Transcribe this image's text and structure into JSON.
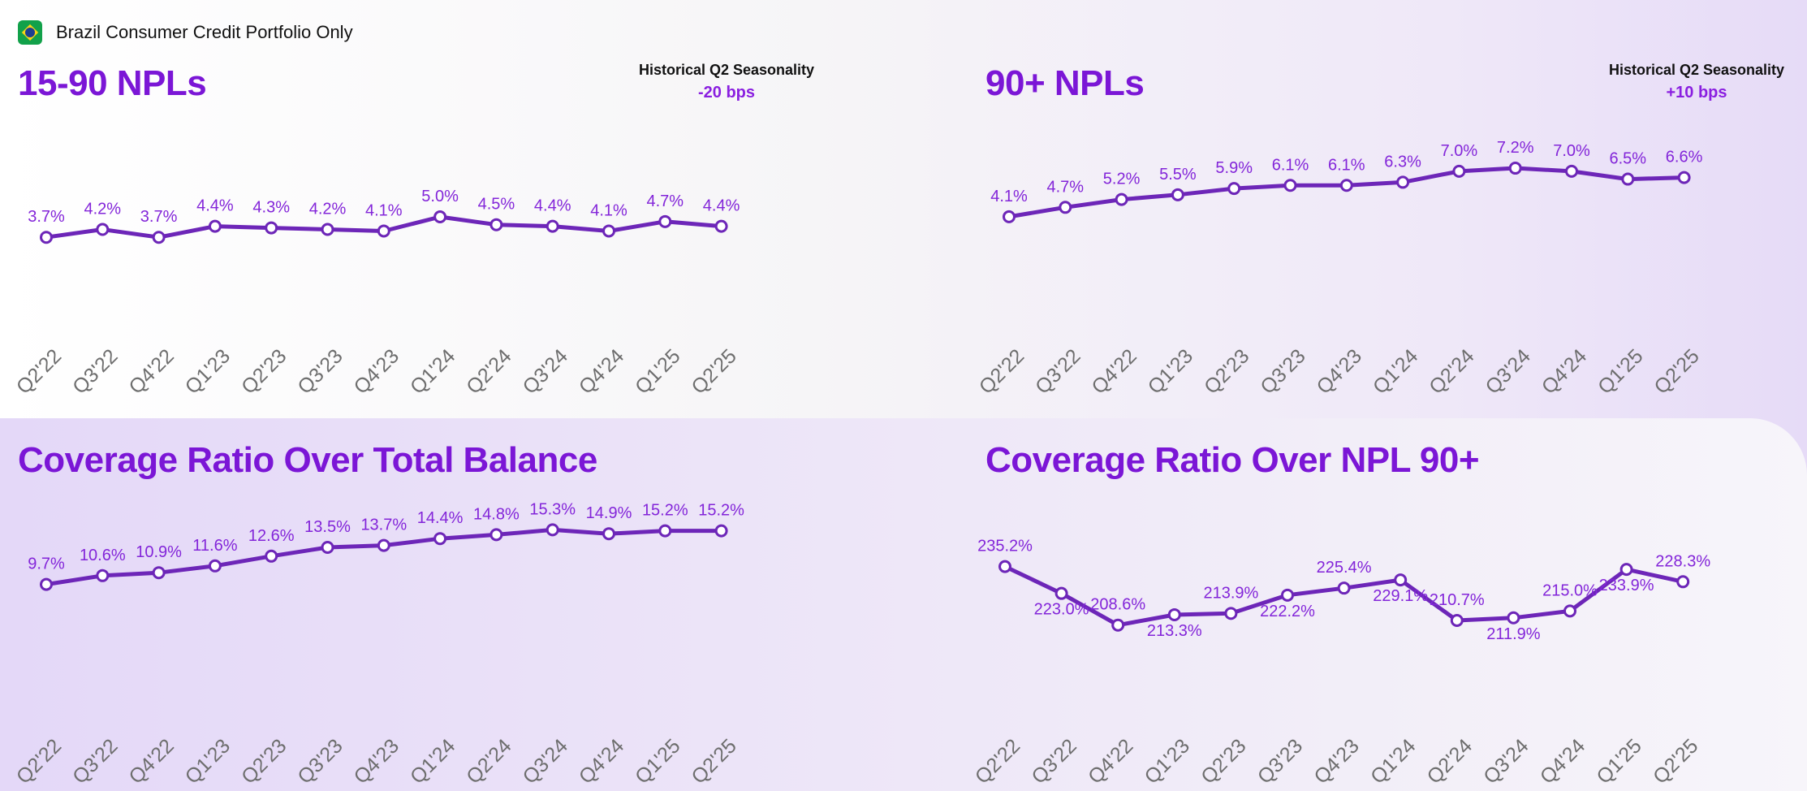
{
  "header": {
    "flag_icon": "brazil-flag-icon",
    "subtitle": "Brazil Consumer Credit Portfolio Only"
  },
  "colors": {
    "accent": "#7b16d6",
    "line": "#6d26b8",
    "label": "#8325d9"
  },
  "panels": {
    "npl_15_90": {
      "title": "15-90 NPLs",
      "seasonality_label": "Historical Q2 Seasonality",
      "seasonality_value": "-20 bps"
    },
    "npl_90": {
      "title": "90+ NPLs",
      "seasonality_label": "Historical Q2 Seasonality",
      "seasonality_value": "+10 bps"
    },
    "coverage_total": {
      "title": "Coverage Ratio Over Total Balance"
    },
    "coverage_npl90": {
      "title": "Coverage Ratio Over NPL 90+"
    }
  },
  "chart_data": [
    {
      "id": "npl_15_90",
      "type": "line",
      "title": "15-90 NPLs",
      "categories": [
        "Q2'22",
        "Q3'22",
        "Q4'22",
        "Q1'23",
        "Q2'23",
        "Q3'23",
        "Q4'23",
        "Q1'24",
        "Q2'24",
        "Q3'24",
        "Q4'24",
        "Q1'25",
        "Q2'25"
      ],
      "values": [
        3.7,
        4.2,
        3.7,
        4.4,
        4.3,
        4.2,
        4.1,
        5.0,
        4.5,
        4.4,
        4.1,
        4.7,
        4.4
      ],
      "labels": [
        "3.7%",
        "4.2%",
        "3.7%",
        "4.4%",
        "4.3%",
        "4.2%",
        "4.1%",
        "5.0%",
        "4.5%",
        "4.4%",
        "4.1%",
        "4.7%",
        "4.4%"
      ],
      "label_side": [
        "up",
        "up",
        "up",
        "up",
        "up",
        "up",
        "up",
        "up",
        "up",
        "up",
        "up",
        "up",
        "up"
      ],
      "ylim": [
        0,
        9
      ]
    },
    {
      "id": "npl_90",
      "type": "line",
      "title": "90+ NPLs",
      "categories": [
        "Q2'22",
        "Q3'22",
        "Q4'22",
        "Q1'23",
        "Q2'23",
        "Q3'23",
        "Q4'23",
        "Q1'24",
        "Q2'24",
        "Q3'24",
        "Q4'24",
        "Q1'25",
        "Q2'25"
      ],
      "values": [
        4.1,
        4.7,
        5.2,
        5.5,
        5.9,
        6.1,
        6.1,
        6.3,
        7.0,
        7.2,
        7.0,
        6.5,
        6.6
      ],
      "labels": [
        "4.1%",
        "4.7%",
        "5.2%",
        "5.5%",
        "5.9%",
        "6.1%",
        "6.1%",
        "6.3%",
        "7.0%",
        "7.2%",
        "7.0%",
        "6.5%",
        "6.6%"
      ],
      "label_side": [
        "up",
        "up",
        "up",
        "up",
        "up",
        "up",
        "up",
        "up",
        "up",
        "up",
        "up",
        "up",
        "up"
      ],
      "ylim": [
        0,
        9.5
      ]
    },
    {
      "id": "coverage_total",
      "type": "line",
      "title": "Coverage Ratio Over Total Balance",
      "categories": [
        "Q2'22",
        "Q3'22",
        "Q4'22",
        "Q1'23",
        "Q2'23",
        "Q3'23",
        "Q4'23",
        "Q1'24",
        "Q2'24",
        "Q3'24",
        "Q4'24",
        "Q1'25",
        "Q2'25"
      ],
      "values": [
        9.7,
        10.6,
        10.9,
        11.6,
        12.6,
        13.5,
        13.7,
        14.4,
        14.8,
        15.3,
        14.9,
        15.2,
        15.2
      ],
      "labels": [
        "9.7%",
        "10.6%",
        "10.9%",
        "11.6%",
        "12.6%",
        "13.5%",
        "13.7%",
        "14.4%",
        "14.8%",
        "15.3%",
        "14.9%",
        "15.2%",
        "15.2%"
      ],
      "label_side": [
        "up",
        "up",
        "up",
        "up",
        "up",
        "up",
        "up",
        "up",
        "up",
        "up",
        "up",
        "up",
        "up"
      ],
      "ylim": [
        0,
        34
      ]
    },
    {
      "id": "coverage_npl90",
      "type": "line",
      "title": "Coverage Ratio Over NPL 90+",
      "categories": [
        "Q2'22",
        "Q3'22",
        "Q4'22",
        "Q1'23",
        "Q2'23",
        "Q3'23",
        "Q4'23",
        "Q1'24",
        "Q2'24",
        "Q3'24",
        "Q4'24",
        "Q1'25",
        "Q2'25"
      ],
      "values": [
        235.2,
        223.0,
        208.6,
        213.3,
        213.9,
        222.2,
        225.4,
        229.1,
        210.7,
        211.9,
        215.0,
        233.9,
        228.3
      ],
      "labels": [
        "235.2%",
        "223.0%",
        "208.6%",
        "213.3%",
        "213.9%",
        "222.2%",
        "225.4%",
        "229.1%",
        "210.7%",
        "211.9%",
        "215.0%",
        "233.9%",
        "228.3%"
      ],
      "label_side": [
        "up",
        "down",
        "up",
        "down",
        "up",
        "down",
        "up",
        "down",
        "up",
        "down",
        "up",
        "down",
        "up"
      ],
      "ylim": [
        0,
        1400
      ]
    }
  ]
}
